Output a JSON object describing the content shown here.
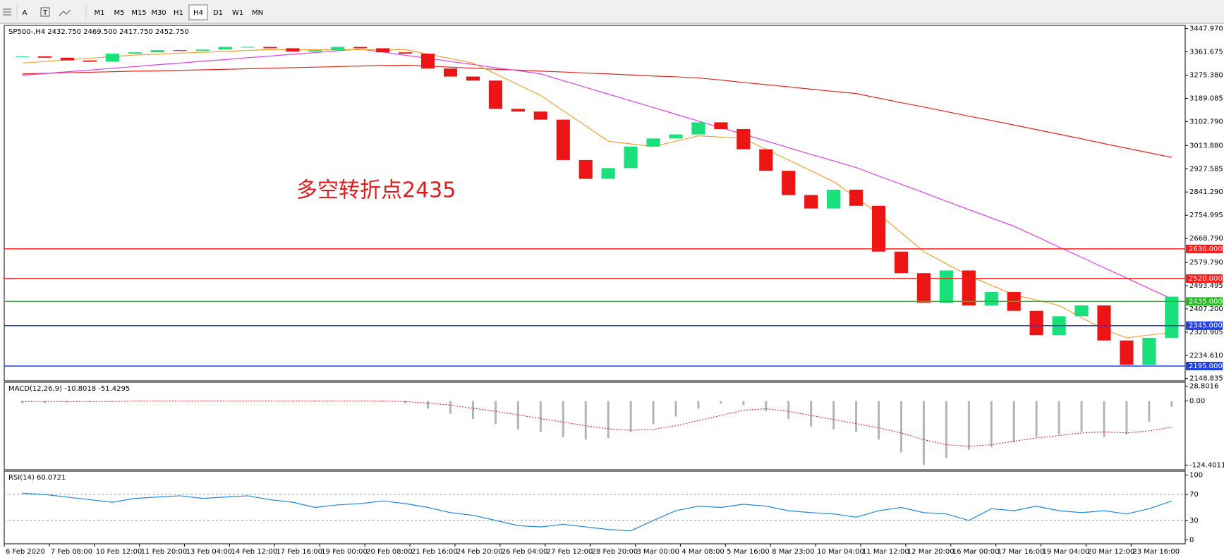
{
  "toolbar": {
    "tools": [
      "A",
      "T"
    ],
    "timeframes": [
      "M1",
      "M5",
      "M15",
      "M30",
      "H1",
      "H4",
      "D1",
      "W1",
      "MN"
    ],
    "active": 5
  },
  "chart_data": [
    {
      "type": "candlestick",
      "title": "SP500-,H4  2432.750 2469.500 2417.750 2452.750",
      "annotation": "多空转折点2435",
      "up_color": "#19e07a",
      "down_color": "#ec1515",
      "xlim": [
        0,
        262
      ],
      "ylim": [
        2140,
        3460
      ],
      "x": [
        4,
        9,
        14,
        19,
        24,
        29,
        34,
        39,
        44,
        49,
        54,
        59,
        64,
        69,
        74,
        79,
        84,
        89,
        94,
        99,
        104,
        109,
        114,
        119,
        124,
        129,
        134,
        139,
        144,
        149,
        154,
        159,
        164,
        169,
        174,
        179,
        184,
        189,
        194,
        199,
        204,
        209,
        214,
        219,
        224,
        229,
        234,
        239,
        244,
        249,
        254,
        259
      ],
      "values": [
        3345,
        3340,
        3330,
        3325,
        3355,
        3360,
        3368,
        3365,
        3370,
        3380,
        3380,
        3375,
        3363,
        3368,
        3380,
        3375,
        3360,
        3355,
        3300,
        3270,
        3255,
        3150,
        3140,
        3110,
        2960,
        2890,
        2930,
        3010,
        3040,
        3055,
        3100,
        3075,
        3000,
        2920,
        2830,
        2780,
        2850,
        2790,
        2620,
        2540,
        2430,
        2550,
        2420,
        2470,
        2400,
        2310,
        2380,
        2420,
        2290,
        2200,
        2300,
        2452.75
      ],
      "moving_averages": [
        {
          "color": "#e8231c",
          "values": [
            3280,
            3282,
            3284,
            3286,
            3288,
            3290,
            3291,
            3293,
            3295,
            3297,
            3299,
            3301,
            3303,
            3305,
            3307,
            3309,
            3311,
            3312,
            3309,
            3305,
            3301,
            3297,
            3294,
            3290,
            3287,
            3283,
            3280,
            3276,
            3272,
            3269,
            3265,
            3257,
            3248,
            3240,
            3232,
            3223,
            3215,
            3207,
            3190,
            3173,
            3157,
            3140,
            3123,
            3107,
            3090,
            3073,
            3056,
            3039,
            3021,
            3004,
            2987,
            2970
          ]
        },
        {
          "color": "#e040e0",
          "values": [
            3275,
            3281,
            3288,
            3294,
            3301,
            3307,
            3314,
            3320,
            3327,
            3333,
            3340,
            3346,
            3353,
            3359,
            3366,
            3372,
            3361,
            3349,
            3338,
            3326,
            3315,
            3303,
            3292,
            3280,
            3255,
            3230,
            3205,
            3180,
            3155,
            3130,
            3105,
            3080,
            3056,
            3031,
            3006,
            2981,
            2957,
            2932,
            2901,
            2870,
            2839,
            2807,
            2776,
            2745,
            2714,
            2676,
            2637,
            2599,
            2560,
            2522,
            2483,
            2445
          ]
        },
        {
          "color": "#f5a030",
          "values": [
            3320,
            3326,
            3332,
            3338,
            3344,
            3350,
            3353,
            3357,
            3360,
            3363,
            3367,
            3370,
            3370,
            3370,
            3370,
            3370,
            3370,
            3370,
            3353,
            3337,
            3320,
            3280,
            3240,
            3200,
            3143,
            3087,
            3030,
            3020,
            3010,
            3030,
            3050,
            3045,
            3040,
            3000,
            2960,
            2920,
            2880,
            2820,
            2760,
            2690,
            2620,
            2575,
            2530,
            2495,
            2460,
            2440,
            2420,
            2375,
            2330,
            2300,
            2310,
            2320
          ]
        }
      ],
      "levels": [
        {
          "value": 2630,
          "label": "2630.000",
          "color": "#ff1a1a"
        },
        {
          "value": 2520,
          "label": "2520.000",
          "color": "#ff1a1a"
        },
        {
          "value": 2435,
          "label": "2435.000",
          "color": "#22bb22"
        },
        {
          "value": 2345,
          "label": "2345.000",
          "color": "#2040e0"
        },
        {
          "value": 2195,
          "label": "2195.000",
          "color": "#2040e0"
        }
      ],
      "yticks": [
        {
          "value": 3447.97,
          "label": "3447.970"
        },
        {
          "value": 3361.675,
          "label": "3361.675"
        },
        {
          "value": 3275.38,
          "label": "3275.380"
        },
        {
          "value": 3189.085,
          "label": "3189.085"
        },
        {
          "value": 3102.79,
          "label": "3102.790"
        },
        {
          "value": 3013.88,
          "label": "3013.880"
        },
        {
          "value": 2927.585,
          "label": "2927.585"
        },
        {
          "value": 2841.29,
          "label": "2841.290"
        },
        {
          "value": 2754.995,
          "label": "2754.995"
        },
        {
          "value": 2668.79,
          "label": "2668.790"
        },
        {
          "value": 2579.79,
          "label": "2579.790"
        },
        {
          "value": 2493.495,
          "label": "2493.495"
        },
        {
          "value": 2407.2,
          "label": "2407.200"
        },
        {
          "value": 2320.905,
          "label": "2320.905"
        },
        {
          "value": 2234.61,
          "label": "2234.610"
        },
        {
          "value": 2148.835,
          "label": "2148.835"
        }
      ]
    },
    {
      "type": "macd",
      "title": "MACD(12,26,9) -10.8018 -51.4295",
      "ylim": [
        -133.5,
        36.4
      ],
      "yticks": [
        28.8016,
        {
          "value": 0,
          "label": "0.00"
        },
        -124.4011
      ],
      "series": [
        {
          "type": "bar",
          "color": "#b4b4b4",
          "values": [
            -5,
            -4,
            -3,
            -2,
            -1,
            0,
            0,
            0,
            0,
            0,
            0,
            0,
            -1,
            -1,
            0,
            0,
            -2,
            -5,
            -15,
            -25,
            -35,
            -45,
            -55,
            -60,
            -70,
            -75,
            -72,
            -60,
            -45,
            -30,
            -15,
            -5,
            -8,
            -20,
            -35,
            -50,
            -55,
            -60,
            -75,
            -100,
            -124,
            -110,
            -95,
            -90,
            -80,
            -70,
            -65,
            -60,
            -70,
            -65,
            -40,
            -11
          ]
        },
        {
          "type": "line",
          "color": "#e01010",
          "values": [
            -1,
            -1,
            -1,
            -1,
            -1,
            0,
            0,
            0,
            0,
            0,
            0,
            0,
            0,
            0,
            0,
            0,
            0,
            -1,
            -4,
            -8,
            -14,
            -20,
            -27,
            -34,
            -41,
            -48,
            -54,
            -57,
            -55,
            -48,
            -38,
            -28,
            -18,
            -15,
            -20,
            -28,
            -36,
            -44,
            -52,
            -62,
            -75,
            -85,
            -88,
            -85,
            -78,
            -72,
            -67,
            -62,
            -60,
            -62,
            -58,
            -51
          ]
        }
      ]
    },
    {
      "type": "rsi",
      "title": "RSI(14) 60.0721",
      "ylim": [
        -6,
        106
      ],
      "yticks": [
        100,
        70,
        30,
        0
      ],
      "levels": [
        70,
        30
      ],
      "color": "#1e88e5",
      "values": [
        72,
        70,
        66,
        62,
        58,
        64,
        66,
        68,
        64,
        66,
        68,
        62,
        58,
        50,
        54,
        56,
        60,
        56,
        50,
        42,
        38,
        30,
        22,
        20,
        24,
        20,
        16,
        14,
        30,
        45,
        52,
        50,
        55,
        52,
        45,
        42,
        40,
        35,
        45,
        50,
        42,
        40,
        30,
        48,
        45,
        52,
        45,
        42,
        45,
        40,
        48,
        60
      ],
      "xticks": [
        {
          "value": 0,
          "label": "6 Feb 2020"
        },
        {
          "value": 10,
          "label": "7 Feb 08:00"
        },
        {
          "value": 20,
          "label": "10 Feb 12:00"
        },
        {
          "value": 30,
          "label": "11 Feb 20:00"
        },
        {
          "value": 40,
          "label": "13 Feb 04:00"
        },
        {
          "value": 50,
          "label": "14 Feb 12:00"
        },
        {
          "value": 60,
          "label": "17 Feb 16:00"
        },
        {
          "value": 70,
          "label": "19 Feb 00:00"
        },
        {
          "value": 80,
          "label": "20 Feb 08:00"
        },
        {
          "value": 90,
          "label": "21 Feb 16:00"
        },
        {
          "value": 100,
          "label": "24 Feb 20:00"
        },
        {
          "value": 110,
          "label": "26 Feb 04:00"
        },
        {
          "value": 120,
          "label": "27 Feb 12:00"
        },
        {
          "value": 130,
          "label": "28 Feb 20:00"
        },
        {
          "value": 140,
          "label": "3 Mar 00:00"
        },
        {
          "value": 150,
          "label": "4 Mar 08:00"
        },
        {
          "value": 160,
          "label": "5 Mar 16:00"
        },
        {
          "value": 170,
          "label": "8 Mar 23:00"
        },
        {
          "value": 180,
          "label": "10 Mar 04:00"
        },
        {
          "value": 190,
          "label": "11 Mar 12:00"
        },
        {
          "value": 200,
          "label": "12 Mar 20:00"
        },
        {
          "value": 210,
          "label": "16 Mar 00:00"
        },
        {
          "value": 220,
          "label": "17 Mar 16:00"
        },
        {
          "value": 230,
          "label": "19 Mar 04:00"
        },
        {
          "value": 240,
          "label": "20 Mar 12:00"
        },
        {
          "value": 250,
          "label": "23 Mar 16:00"
        }
      ]
    }
  ]
}
